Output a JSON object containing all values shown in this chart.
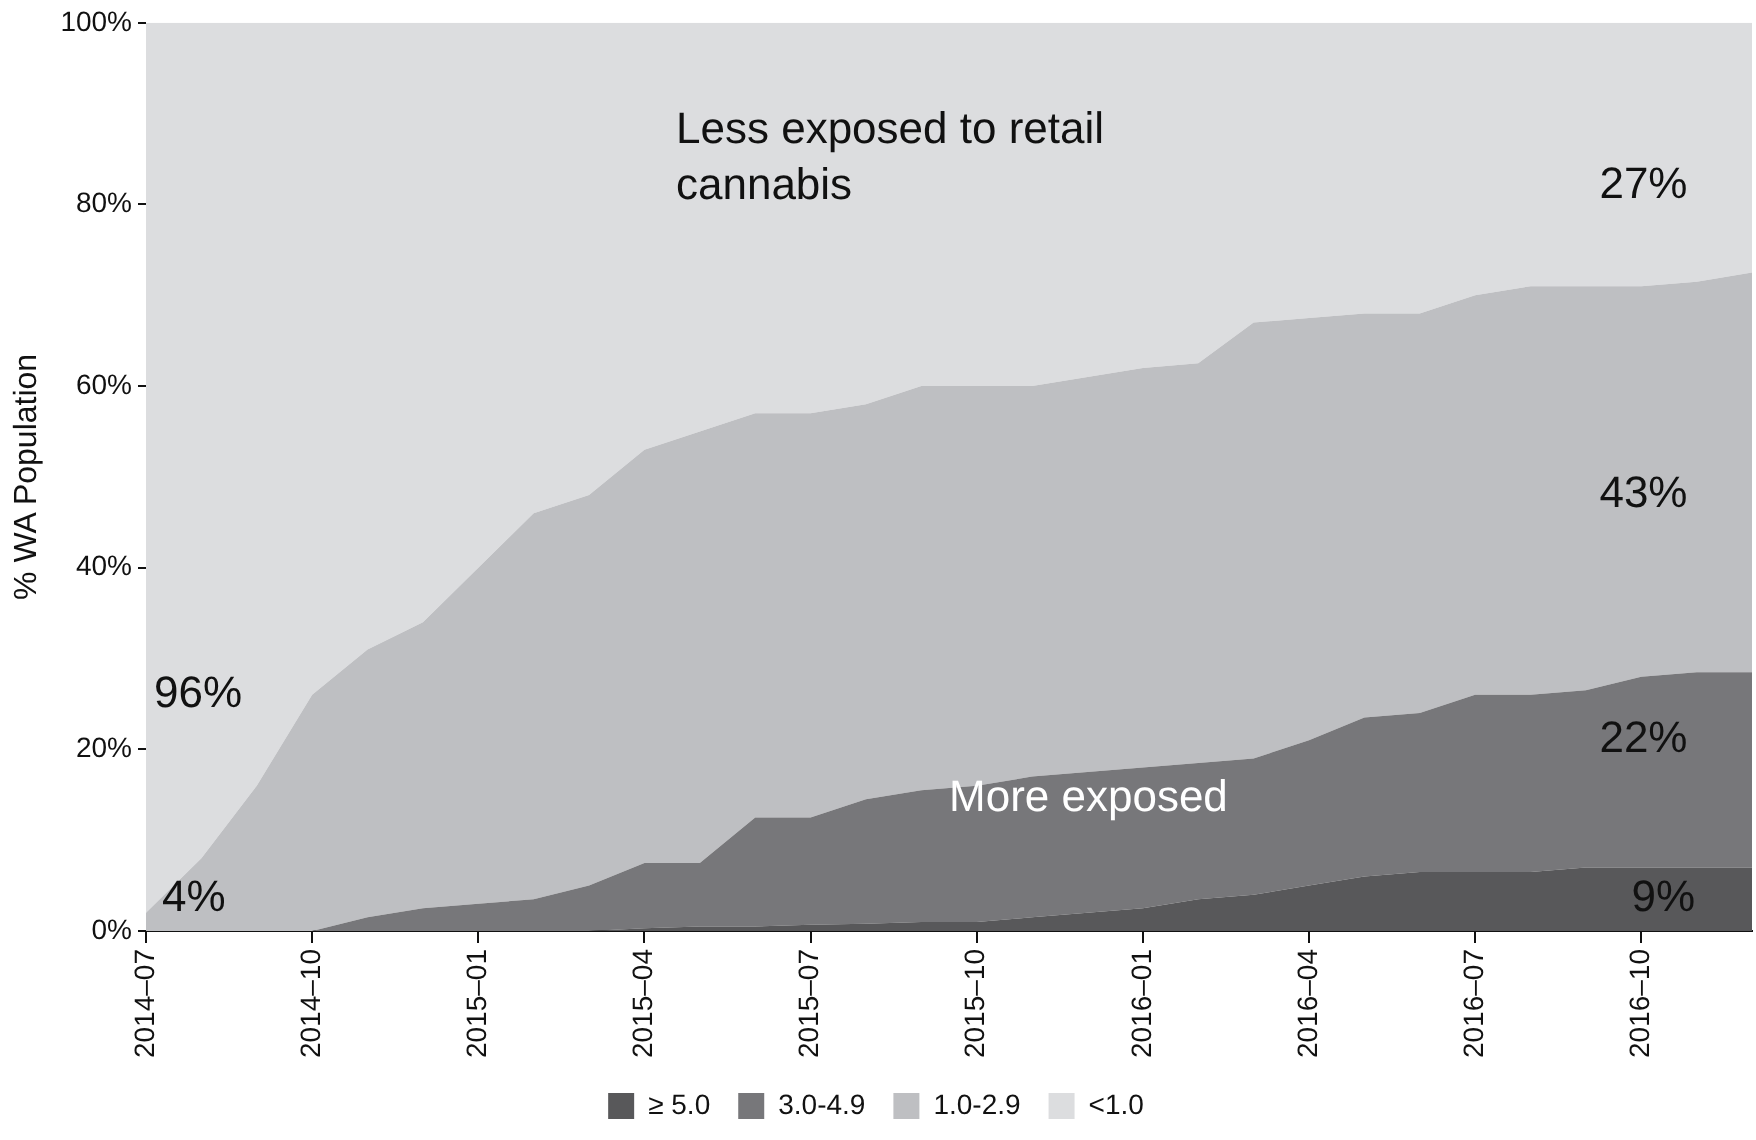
{
  "chart_data": {
    "type": "area",
    "stacked": true,
    "ylabel": "% WA Population",
    "x": [
      "2014-07",
      "2014-08",
      "2014-09",
      "2014-10",
      "2014-11",
      "2014-12",
      "2015-01",
      "2015-02",
      "2015-03",
      "2015-04",
      "2015-05",
      "2015-06",
      "2015-07",
      "2015-08",
      "2015-09",
      "2015-10",
      "2015-11",
      "2015-12",
      "2016-01",
      "2016-02",
      "2016-03",
      "2016-04",
      "2016-05",
      "2016-06",
      "2016-07",
      "2016-08",
      "2016-09",
      "2016-10",
      "2016-11",
      "2016-12"
    ],
    "series": [
      {
        "name": "≥ 5.0",
        "color": "#58585a",
        "values": [
          0,
          0,
          0,
          0,
          0,
          0,
          0,
          0,
          0,
          0.3,
          0.5,
          0.5,
          0.7,
          0.8,
          1,
          1,
          1.5,
          2,
          2.5,
          3.5,
          4,
          5,
          6,
          6.5,
          6.5,
          6.5,
          7,
          7,
          7,
          7
        ]
      },
      {
        "name": "3.0-4.9",
        "color": "#77777a",
        "values": [
          0,
          0,
          0,
          0,
          1.5,
          2.5,
          3,
          3.5,
          5,
          7.2,
          7,
          12,
          11.8,
          13.7,
          14.5,
          15,
          15.5,
          15.5,
          15.5,
          15,
          15,
          16,
          17.5,
          17.5,
          19.5,
          19.5,
          19.5,
          21,
          21.5,
          21.5
        ]
      },
      {
        "name": "1.0-2.9",
        "color": "#bebfc2",
        "values": [
          2,
          8,
          16,
          26,
          29.5,
          31.5,
          37,
          42.5,
          43,
          45.5,
          47.5,
          44.5,
          44.5,
          43.5,
          44.5,
          44,
          43,
          43.5,
          44,
          44,
          48,
          46.5,
          44.5,
          44,
          44,
          45,
          44.5,
          43,
          43,
          44
        ]
      },
      {
        "name": "<1.0",
        "color": "#dcdddf",
        "values": [
          98,
          92,
          84,
          74,
          69,
          66,
          60,
          54,
          52,
          47,
          45,
          43,
          43,
          42,
          40,
          40,
          40,
          39,
          38,
          37.5,
          33,
          32.5,
          32,
          32,
          30,
          29,
          29,
          29,
          28.5,
          27.5
        ]
      }
    ],
    "xlim": [
      "2014-07",
      "2016-12"
    ],
    "xticks": [
      {
        "value": "2014-07",
        "label": "2014–07"
      },
      {
        "value": "2014-10",
        "label": "2014–10"
      },
      {
        "value": "2015-01",
        "label": "2015–01"
      },
      {
        "value": "2015-04",
        "label": "2015–04"
      },
      {
        "value": "2015-07",
        "label": "2015–07"
      },
      {
        "value": "2015-10",
        "label": "2015–10"
      },
      {
        "value": "2016-01",
        "label": "2016–01"
      },
      {
        "value": "2016-04",
        "label": "2016–04"
      },
      {
        "value": "2016-07",
        "label": "2016–07"
      },
      {
        "value": "2016-10",
        "label": "2016–10"
      }
    ],
    "ylim": [
      0,
      100
    ],
    "yticks": [
      {
        "value": 0,
        "label": "0%"
      },
      {
        "value": 20,
        "label": "20%"
      },
      {
        "value": 40,
        "label": "40%"
      },
      {
        "value": 60,
        "label": "60%"
      },
      {
        "value": 80,
        "label": "80%"
      },
      {
        "value": 100,
        "label": "100%"
      }
    ],
    "legend": "bottom",
    "annotations": [
      "Less exposed to retail\ncannabis",
      "96%",
      "4%",
      "27%",
      "43%",
      "22%",
      "9%",
      "More exposed"
    ]
  }
}
